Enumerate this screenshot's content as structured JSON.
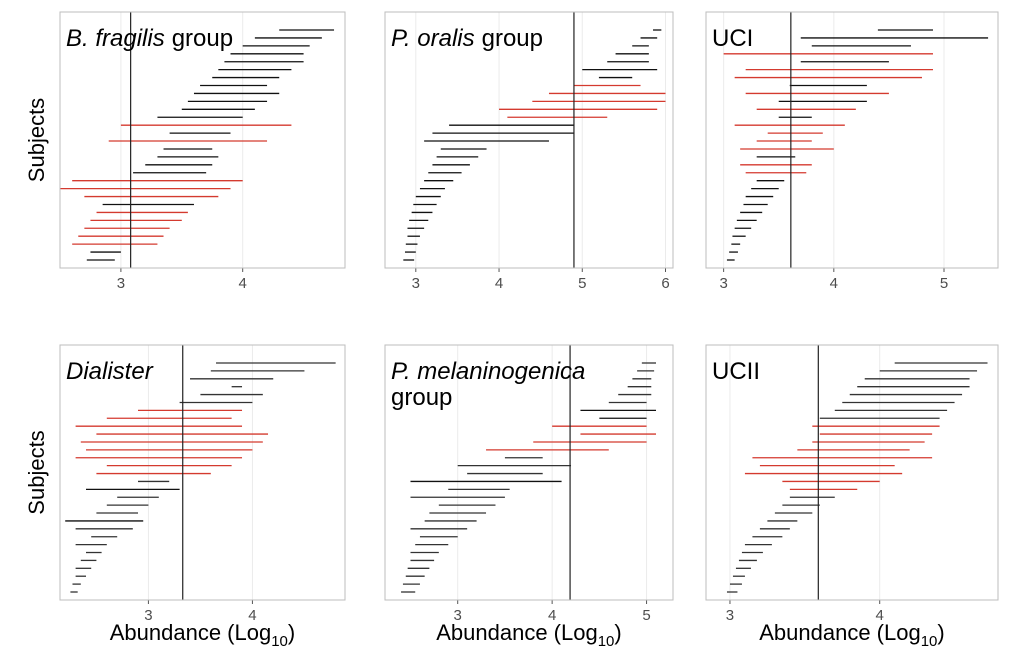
{
  "chart_data": [
    {
      "type": "range",
      "title_italic": "B. fragilis",
      "title_rest": "group",
      "ylabel": "Subjects",
      "xlim": [
        2.5,
        4.84
      ],
      "xticks": [
        3,
        4
      ],
      "vline": 3.08,
      "low": [
        2.72,
        2.75,
        2.6,
        2.65,
        2.7,
        2.75,
        2.8,
        2.85,
        2.7,
        2.5,
        2.6,
        3.1,
        3.2,
        3.3,
        3.35,
        2.9,
        3.4,
        3.0,
        3.3,
        3.5,
        3.55,
        3.6,
        3.65,
        3.75,
        3.8,
        3.85,
        3.9,
        4.0,
        4.1,
        4.3
      ],
      "high": [
        2.95,
        3.0,
        3.3,
        3.35,
        3.4,
        3.5,
        3.55,
        3.6,
        3.8,
        3.9,
        4.0,
        3.7,
        3.75,
        3.8,
        3.75,
        4.2,
        3.9,
        4.4,
        4.0,
        4.1,
        4.2,
        4.3,
        4.2,
        4.3,
        4.4,
        4.5,
        4.5,
        4.55,
        4.65,
        4.75
      ],
      "colors": [
        "#111111",
        "#111111",
        "#d43a2f",
        "#d43a2f",
        "#d43a2f",
        "#d43a2f",
        "#d43a2f",
        "#111111",
        "#d43a2f",
        "#d43a2f",
        "#d43a2f",
        "#111111",
        "#111111",
        "#111111",
        "#111111",
        "#d43a2f",
        "#111111",
        "#d43a2f",
        "#111111",
        "#111111",
        "#111111",
        "#111111",
        "#111111",
        "#111111",
        "#111111",
        "#111111",
        "#111111",
        "#111111",
        "#111111",
        "#111111"
      ]
    },
    {
      "type": "range",
      "title_italic": "P. oralis",
      "title_rest": "group",
      "xlim": [
        2.63,
        6.09
      ],
      "xticks": [
        3,
        4,
        5,
        6
      ],
      "vline": 4.9,
      "low": [
        2.85,
        2.87,
        2.88,
        2.9,
        2.9,
        2.92,
        2.95,
        2.97,
        3.0,
        3.05,
        3.1,
        3.15,
        3.2,
        3.25,
        3.3,
        3.1,
        3.2,
        3.4,
        4.1,
        4.0,
        4.4,
        4.6,
        4.9,
        5.2,
        5.0,
        5.3,
        5.4,
        5.6,
        5.7,
        5.85
      ],
      "high": [
        2.98,
        3.0,
        3.02,
        3.05,
        3.1,
        3.15,
        3.2,
        3.25,
        3.3,
        3.35,
        3.45,
        3.55,
        3.65,
        3.75,
        3.85,
        4.6,
        4.9,
        4.9,
        5.3,
        5.9,
        6.0,
        6.0,
        5.7,
        5.6,
        5.9,
        5.8,
        5.8,
        5.8,
        5.9,
        5.95
      ],
      "colors": [
        "#111111",
        "#111111",
        "#111111",
        "#111111",
        "#111111",
        "#111111",
        "#111111",
        "#111111",
        "#111111",
        "#111111",
        "#111111",
        "#111111",
        "#111111",
        "#111111",
        "#111111",
        "#111111",
        "#111111",
        "#111111",
        "#d43a2f",
        "#d43a2f",
        "#d43a2f",
        "#d43a2f",
        "#d43a2f",
        "#111111",
        "#111111",
        "#111111",
        "#111111",
        "#111111",
        "#111111",
        "#111111"
      ]
    },
    {
      "type": "range",
      "title_rest": "UCI",
      "xlim": [
        2.84,
        5.49
      ],
      "xticks": [
        3,
        4,
        5
      ],
      "vline": 3.61,
      "low": [
        3.03,
        3.05,
        3.07,
        3.08,
        3.1,
        3.12,
        3.15,
        3.18,
        3.2,
        3.25,
        3.3,
        3.2,
        3.15,
        3.3,
        3.15,
        3.3,
        3.4,
        3.1,
        3.5,
        3.3,
        3.5,
        3.2,
        3.6,
        3.1,
        3.2,
        3.7,
        3.0,
        3.8,
        3.7,
        4.4
      ],
      "high": [
        3.1,
        3.13,
        3.15,
        3.2,
        3.25,
        3.3,
        3.35,
        3.4,
        3.45,
        3.5,
        3.55,
        3.75,
        3.8,
        3.65,
        4.0,
        3.8,
        3.9,
        4.1,
        3.8,
        4.2,
        4.3,
        4.5,
        4.3,
        4.8,
        4.9,
        4.5,
        4.9,
        4.7,
        5.4,
        4.9
      ],
      "colors": [
        "#111111",
        "#111111",
        "#111111",
        "#111111",
        "#111111",
        "#111111",
        "#111111",
        "#111111",
        "#111111",
        "#111111",
        "#111111",
        "#d43a2f",
        "#d43a2f",
        "#111111",
        "#d43a2f",
        "#d43a2f",
        "#d43a2f",
        "#d43a2f",
        "#111111",
        "#d43a2f",
        "#111111",
        "#d43a2f",
        "#111111",
        "#d43a2f",
        "#d43a2f",
        "#111111",
        "#d43a2f",
        "#111111",
        "#111111",
        "#111111"
      ]
    },
    {
      "type": "range",
      "title_italic": "Dialister",
      "ylabel": "Subjects",
      "xlabel": "Abundance (Log",
      "xlabel_sub": "10",
      "xlabel_end": ")",
      "xlim": [
        2.15,
        4.89
      ],
      "xticks": [
        3,
        4
      ],
      "vline": 3.33,
      "low": [
        2.25,
        2.27,
        2.3,
        2.3,
        2.35,
        2.4,
        2.3,
        2.45,
        2.3,
        2.2,
        2.5,
        2.6,
        2.7,
        2.4,
        2.9,
        2.5,
        2.6,
        2.3,
        2.4,
        2.35,
        2.5,
        2.3,
        2.6,
        2.9,
        3.3,
        3.5,
        3.8,
        3.4,
        3.6,
        3.65
      ],
      "high": [
        2.32,
        2.35,
        2.4,
        2.45,
        2.5,
        2.55,
        2.6,
        2.7,
        2.85,
        2.95,
        2.9,
        3.0,
        3.1,
        3.3,
        3.2,
        3.6,
        3.8,
        3.9,
        4.0,
        4.1,
        4.15,
        3.9,
        3.8,
        3.9,
        4.0,
        4.1,
        3.9,
        4.2,
        4.5,
        4.8
      ],
      "colors": [
        "#333333",
        "#333333",
        "#333333",
        "#333333",
        "#333333",
        "#333333",
        "#333333",
        "#333333",
        "#333333",
        "#111111",
        "#333333",
        "#333333",
        "#333333",
        "#111111",
        "#333333",
        "#d43a2f",
        "#d43a2f",
        "#d43a2f",
        "#d43a2f",
        "#d43a2f",
        "#d43a2f",
        "#d43a2f",
        "#d43a2f",
        "#d43a2f",
        "#333333",
        "#333333",
        "#333333",
        "#333333",
        "#333333",
        "#333333"
      ]
    },
    {
      "type": "range",
      "title_italic": "P. melaninogenica",
      "title_rest": "group",
      "title_wrap": true,
      "xlabel": "Abundance (Log",
      "xlabel_sub": "10",
      "xlabel_end": ")",
      "xlim": [
        2.23,
        5.28
      ],
      "xticks": [
        3,
        4,
        5
      ],
      "vline": 4.19,
      "low": [
        2.4,
        2.42,
        2.45,
        2.47,
        2.5,
        2.5,
        2.55,
        2.6,
        2.5,
        2.65,
        2.7,
        2.8,
        2.5,
        2.9,
        2.5,
        3.1,
        3.0,
        3.5,
        3.3,
        3.8,
        4.3,
        4.0,
        4.5,
        4.3,
        4.6,
        4.7,
        4.8,
        4.85,
        4.9,
        4.95
      ],
      "high": [
        2.55,
        2.6,
        2.65,
        2.7,
        2.75,
        2.8,
        2.9,
        3.0,
        3.1,
        3.2,
        3.3,
        3.4,
        3.5,
        3.55,
        4.1,
        3.9,
        4.2,
        3.9,
        4.6,
        5.0,
        5.1,
        5.0,
        5.0,
        5.1,
        5.0,
        5.05,
        5.05,
        5.05,
        5.08,
        5.1
      ],
      "colors": [
        "#333333",
        "#333333",
        "#333333",
        "#333333",
        "#333333",
        "#333333",
        "#333333",
        "#333333",
        "#333333",
        "#333333",
        "#333333",
        "#333333",
        "#333333",
        "#333333",
        "#111111",
        "#333333",
        "#333333",
        "#333333",
        "#d43a2f",
        "#d43a2f",
        "#d43a2f",
        "#d43a2f",
        "#111111",
        "#111111",
        "#333333",
        "#333333",
        "#333333",
        "#333333",
        "#333333",
        "#333333"
      ]
    },
    {
      "type": "range",
      "title_rest": "UCII",
      "xlabel": "Abundance (Log",
      "xlabel_sub": "10",
      "xlabel_end": ")",
      "xlim": [
        2.84,
        4.79
      ],
      "xticks": [
        3,
        4
      ],
      "vline": 3.59,
      "low": [
        2.98,
        3.0,
        3.02,
        3.04,
        3.06,
        3.08,
        3.1,
        3.15,
        3.2,
        3.25,
        3.3,
        3.35,
        3.4,
        3.4,
        3.35,
        3.1,
        3.2,
        3.15,
        3.45,
        3.55,
        3.6,
        3.55,
        3.6,
        3.7,
        3.75,
        3.8,
        3.85,
        3.9,
        4.0,
        4.1
      ],
      "high": [
        3.05,
        3.08,
        3.1,
        3.14,
        3.18,
        3.22,
        3.28,
        3.35,
        3.4,
        3.45,
        3.55,
        3.6,
        3.7,
        3.85,
        4.0,
        4.15,
        4.1,
        4.35,
        4.2,
        4.3,
        4.35,
        4.4,
        4.4,
        4.45,
        4.5,
        4.55,
        4.6,
        4.6,
        4.65,
        4.72
      ],
      "colors": [
        "#333333",
        "#333333",
        "#333333",
        "#333333",
        "#333333",
        "#333333",
        "#333333",
        "#333333",
        "#333333",
        "#333333",
        "#333333",
        "#333333",
        "#333333",
        "#d43a2f",
        "#d43a2f",
        "#d43a2f",
        "#d43a2f",
        "#d43a2f",
        "#d43a2f",
        "#d43a2f",
        "#d43a2f",
        "#d43a2f",
        "#333333",
        "#333333",
        "#333333",
        "#333333",
        "#333333",
        "#333333",
        "#333333",
        "#333333"
      ]
    }
  ]
}
